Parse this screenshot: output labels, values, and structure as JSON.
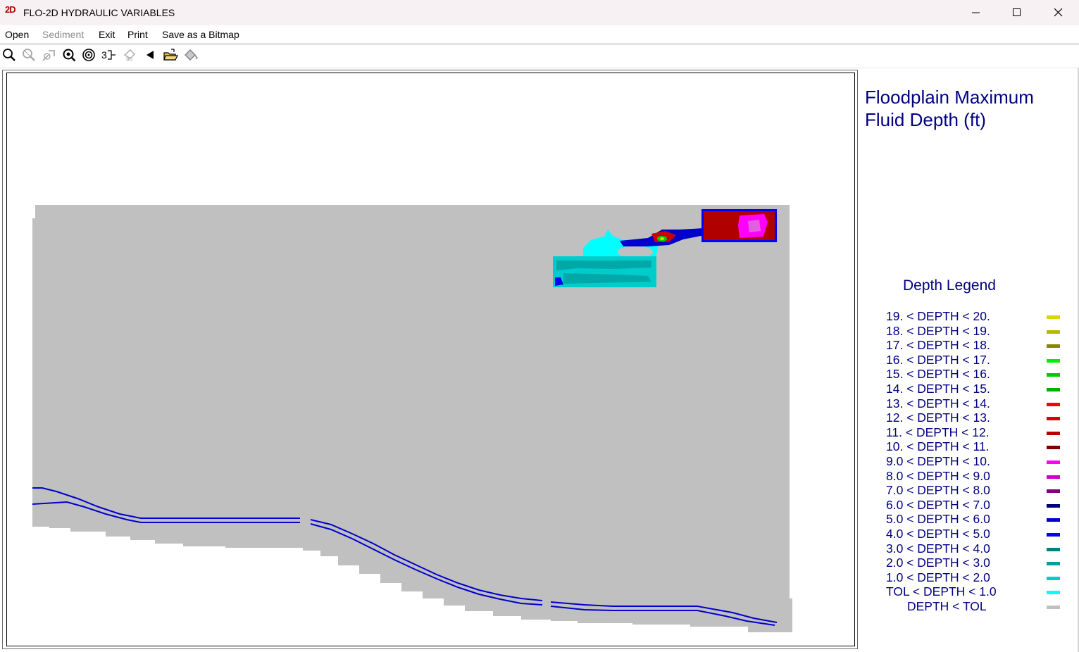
{
  "window": {
    "icon_text": "2D",
    "title": "FLO-2D HYDRAULIC VARIABLES",
    "controls": [
      "minimize",
      "maximize",
      "close"
    ]
  },
  "menu": [
    {
      "label": "Open",
      "enabled": true
    },
    {
      "label": "Sediment",
      "enabled": false
    },
    {
      "label": "Exit",
      "enabled": true
    },
    {
      "label": "Print",
      "enabled": true
    },
    {
      "label": "Save as a Bitmap",
      "enabled": true
    }
  ],
  "toolbar": [
    {
      "icon": "zoom-in-icon",
      "enabled": true
    },
    {
      "icon": "zoom-out-icon",
      "enabled": false
    },
    {
      "icon": "zoom-extent-icon",
      "enabled": false
    },
    {
      "icon": "zoom-window-icon",
      "enabled": true
    },
    {
      "icon": "target-icon",
      "enabled": true
    },
    {
      "icon": "3d-view-icon",
      "enabled": true
    },
    {
      "icon": "rotate-icon",
      "enabled": false
    },
    {
      "icon": "back-arrow-icon",
      "enabled": true
    },
    {
      "icon": "open-folder-icon",
      "enabled": true
    },
    {
      "icon": "paint-bucket-icon",
      "enabled": true
    }
  ],
  "plot": {
    "title_line1": "Floodplain Maximum",
    "title_line2": "Fluid Depth (ft)",
    "legend_header": "Depth Legend",
    "legend": [
      {
        "label": "19. < DEPTH < 20.",
        "color": "#d8d800"
      },
      {
        "label": "18. < DEPTH < 19.",
        "color": "#b8b800"
      },
      {
        "label": "17. < DEPTH < 18.",
        "color": "#888800"
      },
      {
        "label": "16. < DEPTH < 17.",
        "color": "#00ee00"
      },
      {
        "label": "15. < DEPTH < 16.",
        "color": "#00cc00"
      },
      {
        "label": "14. < DEPTH < 15.",
        "color": "#00b000"
      },
      {
        "label": "13. < DEPTH < 14.",
        "color": "#ff0000"
      },
      {
        "label": "12. < DEPTH < 13.",
        "color": "#dd0000"
      },
      {
        "label": "11. < DEPTH < 12.",
        "color": "#b80000"
      },
      {
        "label": "10. < DEPTH < 11.",
        "color": "#800000"
      },
      {
        "label": "9.0 < DEPTH < 10.",
        "color": "#ff00ff"
      },
      {
        "label": "8.0 < DEPTH < 9.0",
        "color": "#cc00cc"
      },
      {
        "label": "7.0 < DEPTH < 8.0",
        "color": "#800080"
      },
      {
        "label": "6.0 < DEPTH < 7.0",
        "color": "#000080"
      },
      {
        "label": "5.0 < DEPTH < 6.0",
        "color": "#0000cc"
      },
      {
        "label": "4.0 < DEPTH < 5.0",
        "color": "#0000ff"
      },
      {
        "label": "3.0 < DEPTH < 4.0",
        "color": "#008080"
      },
      {
        "label": "2.0 < DEPTH < 3.0",
        "color": "#00a0a0"
      },
      {
        "label": "1.0 < DEPTH < 2.0",
        "color": "#00cccc"
      },
      {
        "label": "TOL < DEPTH < 1.0",
        "color": "#00ffff"
      },
      {
        "label": "DEPTH < TOL",
        "color": "#c0c0c0"
      }
    ]
  }
}
